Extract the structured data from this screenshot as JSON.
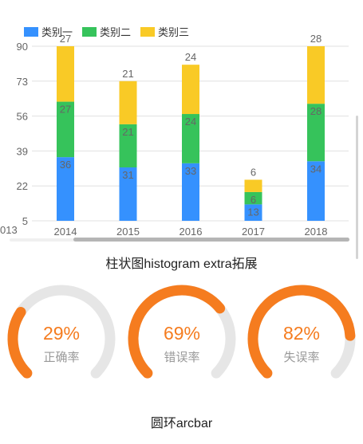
{
  "chart_data": [
    {
      "type": "bar",
      "stacked": true,
      "title": "",
      "categories": [
        "2014",
        "2015",
        "2016",
        "2017",
        "2018"
      ],
      "series": [
        {
          "name": "类别一",
          "values": [
            36,
            31,
            33,
            13,
            34
          ],
          "color": "#3591fe"
        },
        {
          "name": "类别二",
          "values": [
            27,
            21,
            24,
            6,
            28
          ],
          "color": "#36c35b"
        },
        {
          "name": "类别三",
          "values": [
            27,
            21,
            24,
            6,
            28
          ],
          "color": "#f9ca26"
        }
      ],
      "y_ticks": [
        "90",
        "73",
        "56",
        "39",
        "22",
        "5"
      ],
      "ylim": [
        5,
        90
      ],
      "y_axis_clipped_label": "013",
      "grid": true,
      "legend": "top-left"
    },
    {
      "type": "arcbar",
      "items": [
        {
          "percent": 29,
          "value": "29%",
          "label": "正确率",
          "color": "#f57c1f"
        },
        {
          "percent": 69,
          "value": "69%",
          "label": "错误率",
          "color": "#f57c1f"
        },
        {
          "percent": 82,
          "value": "82%",
          "label": "失误率",
          "color": "#f57c1f"
        }
      ],
      "track_color": "#e6e6e6"
    }
  ],
  "captions": {
    "histogram": "柱状图histogram extra拓展",
    "arcbar": "圆环arcbar"
  }
}
